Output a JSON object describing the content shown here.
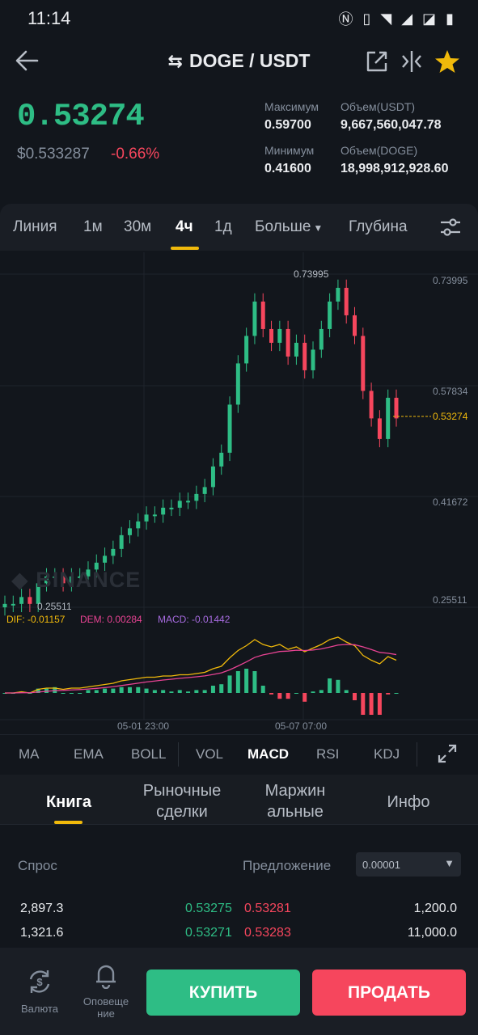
{
  "status_bar": {
    "time": "11:14"
  },
  "header": {
    "title": "DOGE / USDT"
  },
  "ticker": {
    "price": "0.53274",
    "usd_price": "$0.533287",
    "change": "-0.66%",
    "high_label": "Максимум",
    "high_value": "0.59700",
    "vol_usdt_label": "Объем(USDT)",
    "vol_usdt_value": "9,667,560,047.78",
    "low_label": "Минимум",
    "low_value": "0.41600",
    "vol_doge_label": "Объем(DOGE)",
    "vol_doge_value": "18,998,912,928.60"
  },
  "timeframes": [
    "Линия",
    "1м",
    "30м",
    "4ч",
    "1д",
    "Больше",
    "Глубина"
  ],
  "active_timeframe": "4ч",
  "chart": {
    "watermark": "BINANCE",
    "price_labels": [
      "0.73995",
      "0.57834",
      "0.41672",
      "0.25511"
    ],
    "high_marker": "0.73995",
    "low_marker": "0.25511",
    "last_price": "0.53274",
    "time_labels": [
      "05-01 23:00",
      "05-07 07:00"
    ],
    "macd_dif": "DIF: -0.01157",
    "macd_dem": "DEM: 0.00284",
    "macd_macd": "MACD: -0.01442"
  },
  "indicators": [
    "MA",
    "EMA",
    "BOLL",
    "VOL",
    "MACD",
    "RSI",
    "KDJ"
  ],
  "active_indicator": "MACD",
  "tabs": {
    "book": "Книга",
    "market_trades_1": "Рыночные",
    "market_trades_2": "сделки",
    "margin_1": "Маржин",
    "margin_2": "альные",
    "info": "Инфо"
  },
  "order_book": {
    "bid_label": "Спрос",
    "ask_label": "Предложение",
    "precision": "0.00001",
    "rows": [
      {
        "bid_qty": "2,897.3",
        "bid_price": "0.53275",
        "ask_price": "0.53281",
        "ask_qty": "1,200.0"
      },
      {
        "bid_qty": "1,321.6",
        "bid_price": "0.53271",
        "ask_price": "0.53283",
        "ask_qty": "11,000.0"
      }
    ]
  },
  "bottom_bar": {
    "currency_label": "Валюта",
    "alerts_label_1": "Оповеще",
    "alerts_label_2": "ние",
    "buy": "КУПИТЬ",
    "sell": "ПРОДАТЬ"
  },
  "colors": {
    "up": "#2ebd85",
    "down": "#f6465d",
    "accent": "#f0b90b"
  },
  "chart_data": {
    "type": "candlestick",
    "y_range": [
      0.25511,
      0.73995
    ],
    "approx_closes": [
      0.26,
      0.26,
      0.27,
      0.26,
      0.29,
      0.3,
      0.3,
      0.29,
      0.3,
      0.3,
      0.31,
      0.32,
      0.33,
      0.34,
      0.36,
      0.37,
      0.38,
      0.39,
      0.39,
      0.4,
      0.4,
      0.41,
      0.41,
      0.42,
      0.43,
      0.46,
      0.48,
      0.55,
      0.61,
      0.65,
      0.7,
      0.66,
      0.64,
      0.66,
      0.62,
      0.64,
      0.6,
      0.63,
      0.66,
      0.7,
      0.72,
      0.68,
      0.65,
      0.57,
      0.53,
      0.5,
      0.56,
      0.53
    ]
  }
}
